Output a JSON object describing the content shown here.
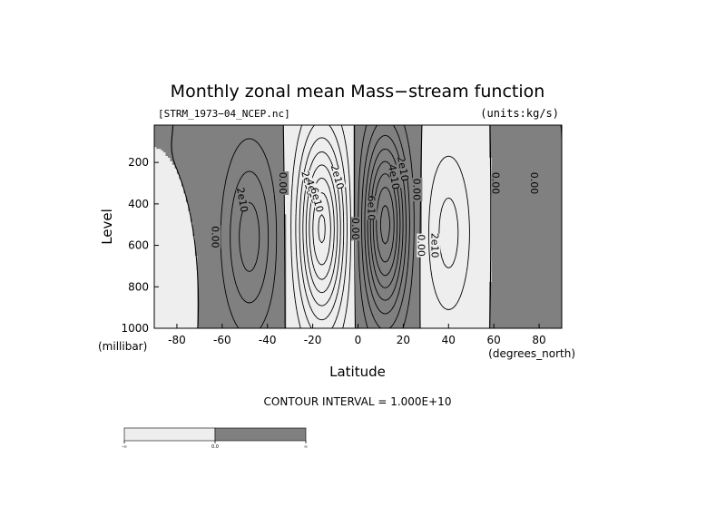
{
  "chart_data": {
    "type": "contour",
    "title": "Monthly zonal mean Mass−stream function",
    "subtitle_left": "[STRM_1973−04_NCEP.nc]",
    "subtitle_right": "(units:kg/s)",
    "xlabel": "Latitude",
    "ylabel": "Level",
    "x_unit": "(degrees_north)",
    "y_unit": "(millibar)",
    "xlim": [
      -90,
      90
    ],
    "ylim": [
      1000,
      20
    ],
    "x_ticks": [
      -80,
      -60,
      -40,
      -20,
      0,
      20,
      40,
      60,
      80
    ],
    "y_ticks": [
      200,
      400,
      600,
      800,
      1000
    ],
    "contour_interval_text": "CONTOUR INTERVAL = 1.000E+10",
    "shading_colors": {
      "negative": "#eeeeee",
      "positive": "#808080"
    },
    "colorbar_labels": [
      "-∞",
      "0.0",
      "∞"
    ],
    "contour_labels": [
      {
        "text": "0.00",
        "lat": -63,
        "lev": 560,
        "angle": 90
      },
      {
        "text": "2e10",
        "lat": -51,
        "lev": 380,
        "angle": 80
      },
      {
        "text": "0.00",
        "lat": -33,
        "lev": 300,
        "angle": 90
      },
      {
        "text": "2e10",
        "lat": -22,
        "lev": 300,
        "angle": 75
      },
      {
        "text": "4e10",
        "lat": -20,
        "lev": 340,
        "angle": 75
      },
      {
        "text": "6e10",
        "lat": -18,
        "lev": 380,
        "angle": 75
      },
      {
        "text": "2e10",
        "lat": -9,
        "lev": 270,
        "angle": 75
      },
      {
        "text": "0.00",
        "lat": -1,
        "lev": 520,
        "angle": 90
      },
      {
        "text": "6e10",
        "lat": 6,
        "lev": 420,
        "angle": 90
      },
      {
        "text": "4e10",
        "lat": 16,
        "lev": 270,
        "angle": 80
      },
      {
        "text": "2e10",
        "lat": 20,
        "lev": 230,
        "angle": 80
      },
      {
        "text": "0.00",
        "lat": 26,
        "lev": 330,
        "angle": 90
      },
      {
        "text": "0.00",
        "lat": 28,
        "lev": 600,
        "angle": 90
      },
      {
        "text": "2e10",
        "lat": 34,
        "lev": 600,
        "angle": 90
      },
      {
        "text": "0.00",
        "lat": 61,
        "lev": 300,
        "angle": 90
      },
      {
        "text": "0.00",
        "lat": 78,
        "lev": 300,
        "angle": 90
      }
    ],
    "centers": [
      {
        "name": "south-polar-cell",
        "lat": -80,
        "lev": 800,
        "amp": 0.7,
        "sx": 4,
        "sy": 150,
        "sign": "negative"
      },
      {
        "name": "south-ferrel-cell",
        "lat": -48,
        "lev": 560,
        "amp": 3.5,
        "sx": 8,
        "sy": 300,
        "sign": "positive"
      },
      {
        "name": "south-hadley-cell",
        "lat": -16,
        "lev": 520,
        "amp": 8.2,
        "sx": 7,
        "sy": 310,
        "sign": "negative"
      },
      {
        "name": "north-hadley-cell",
        "lat": 12,
        "lev": 500,
        "amp": 8.4,
        "sx": 6.5,
        "sy": 300,
        "sign": "positive"
      },
      {
        "name": "north-ferrel-cell",
        "lat": 40,
        "lev": 540,
        "amp": 2.4,
        "sx": 7,
        "sy": 280,
        "sign": "negative"
      },
      {
        "name": "north-polar-cell",
        "lat": 70,
        "lev": 560,
        "amp": 0.9,
        "sx": 5,
        "sy": 320,
        "sign": "positive"
      }
    ]
  }
}
